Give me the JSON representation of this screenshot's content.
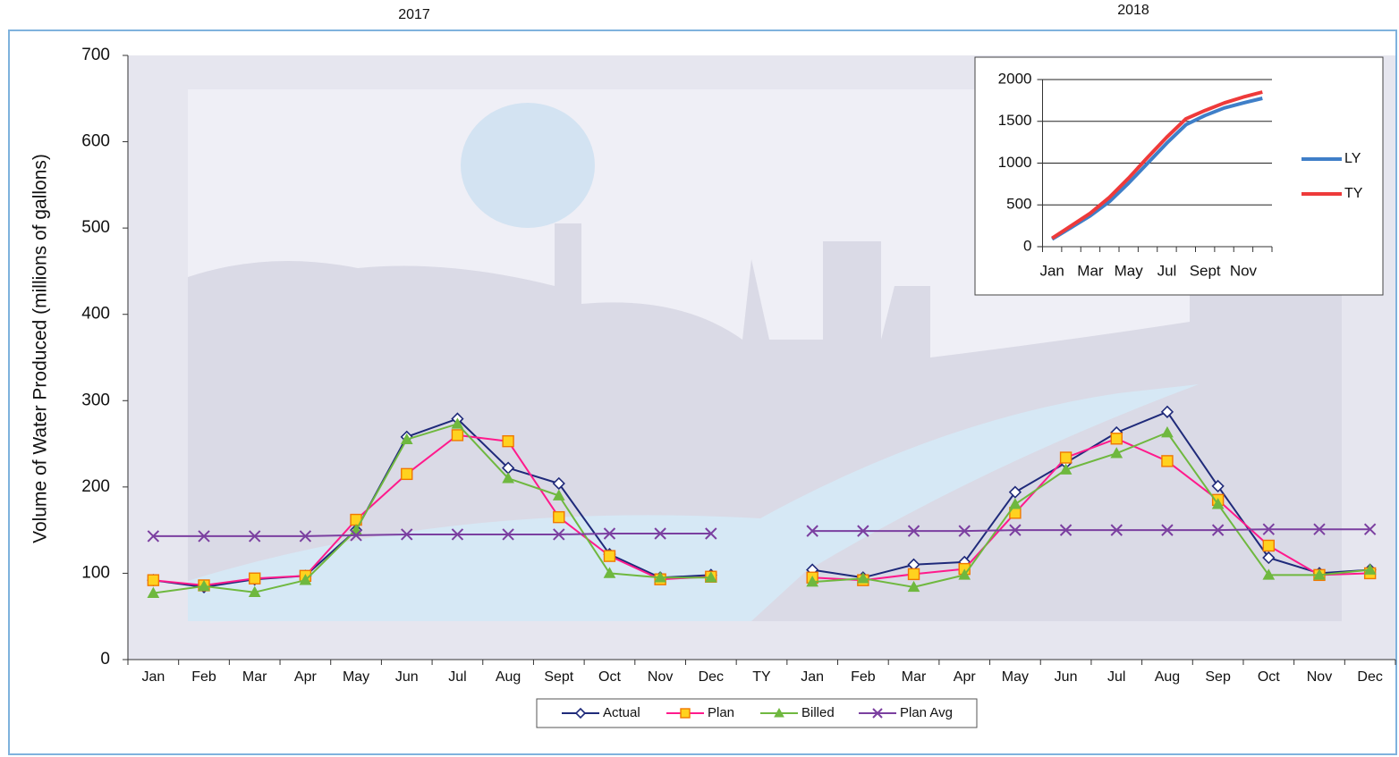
{
  "chart_data": [
    {
      "type": "line",
      "year_labels": [
        "2017",
        "2018"
      ],
      "y_label": "Volume of Water Produced (millions of gallons)",
      "categories": [
        "Jan",
        "Feb",
        "Mar",
        "Apr",
        "May",
        "Jun",
        "Jul",
        "Aug",
        "Sept",
        "Oct",
        "Nov",
        "Dec",
        "TY",
        "Jan",
        "Feb",
        "Mar",
        "Apr",
        "May",
        "Jun",
        "Jul",
        "Aug",
        "Sep",
        "Oct",
        "Nov",
        "Dec"
      ],
      "ylim": [
        0,
        700
      ],
      "yticks": [
        0,
        100,
        200,
        300,
        400,
        500,
        600,
        700
      ],
      "grid": false,
      "legend": "bottom",
      "series": [
        {
          "name": "Actual",
          "color": "#1f2a7a",
          "marker": "diamond",
          "marker_color": "#ffffff",
          "values": [
            92,
            84,
            93,
            97,
            150,
            258,
            279,
            222,
            204,
            122,
            95,
            98,
            null,
            104,
            95,
            110,
            113,
            194,
            228,
            263,
            287,
            201,
            118,
            100,
            104
          ]
        },
        {
          "name": "Plan",
          "color": "#ff1a8c",
          "marker": "square",
          "marker_color": "#ffd21f",
          "values": [
            92,
            86,
            94,
            97,
            162,
            215,
            260,
            253,
            165,
            120,
            93,
            96,
            null,
            95,
            92,
            99,
            105,
            170,
            234,
            256,
            230,
            185,
            132,
            98,
            100
          ]
        },
        {
          "name": "Billed",
          "color": "#6fb83f",
          "marker": "triangle",
          "marker_color": "#6fb83f",
          "values": [
            77,
            85,
            78,
            92,
            150,
            255,
            273,
            210,
            190,
            100,
            95,
            95,
            null,
            90,
            94,
            84,
            98,
            180,
            220,
            239,
            263,
            180,
            98,
            98,
            104
          ]
        },
        {
          "name": "Plan Avg",
          "color": "#7b3fa0",
          "marker": "x",
          "marker_color": "#7b3fa0",
          "values": [
            143,
            143,
            143,
            143,
            144,
            145,
            145,
            145,
            145,
            146,
            146,
            146,
            null,
            149,
            149,
            149,
            149,
            150,
            150,
            150,
            150,
            150,
            151,
            151,
            151
          ]
        }
      ]
    },
    {
      "type": "line",
      "categories": [
        "Jan",
        null,
        "Mar",
        null,
        "May",
        null,
        "Jul",
        null,
        "Sept",
        null,
        "Nov",
        null
      ],
      "ylim": [
        0,
        2000
      ],
      "yticks": [
        0,
        500,
        1000,
        1500,
        2000
      ],
      "grid": true,
      "legend": "right",
      "series": [
        {
          "name": "LY",
          "color": "#3f7fc8",
          "values": [
            90,
            230,
            370,
            540,
            760,
            1000,
            1240,
            1460,
            1570,
            1660,
            1720,
            1775
          ]
        },
        {
          "name": "TY",
          "color": "#ee3a3a",
          "values": [
            100,
            250,
            400,
            590,
            820,
            1070,
            1310,
            1530,
            1630,
            1720,
            1790,
            1850
          ]
        }
      ]
    }
  ]
}
